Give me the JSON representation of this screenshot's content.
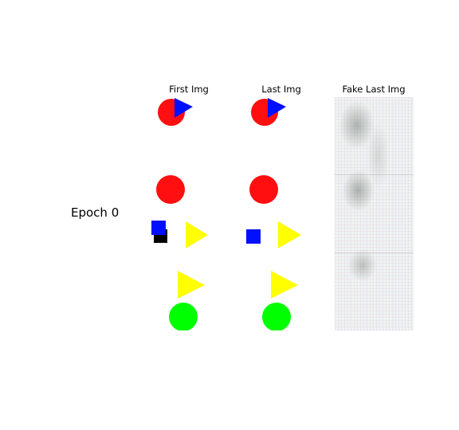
{
  "figure": {
    "row_label": "Epoch 0",
    "columns": [
      {
        "title": "First Img"
      },
      {
        "title": "Last Img"
      },
      {
        "title": "Fake Last Img"
      }
    ],
    "colors": {
      "red": "#ff0f0f",
      "blue": "#0010ff",
      "yellow": "#ffff00",
      "green": "#00ff00",
      "black": "#000000"
    }
  }
}
